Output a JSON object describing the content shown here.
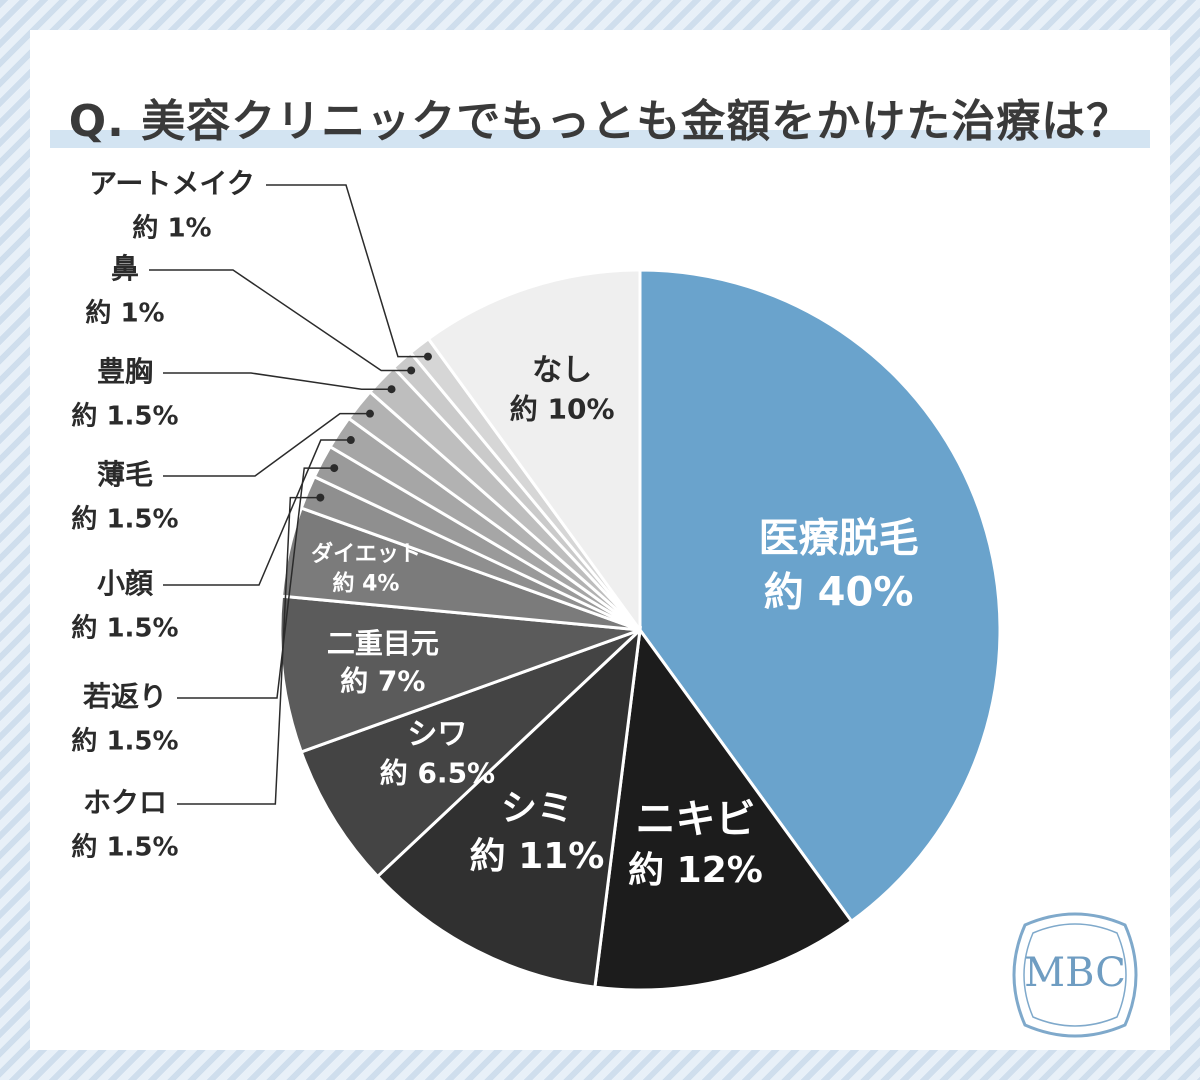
{
  "title": "Q. 美容クリニックでもっとも金額をかけた治療は？",
  "logo_text": "MBC",
  "chart_data": {
    "type": "pie",
    "title": "Q. 美容クリニックでもっとも金額をかけた治療は？",
    "unit": "%",
    "slices": [
      {
        "label": "医療脱毛",
        "pct_label": "約 40%",
        "value": 40,
        "color": "#6aa3cc",
        "text_color": "#ffffff",
        "placement": "inside"
      },
      {
        "label": "ニキビ",
        "pct_label": "約 12%",
        "value": 12,
        "color": "#1c1c1c",
        "text_color": "#ffffff",
        "placement": "inside"
      },
      {
        "label": "シミ",
        "pct_label": "約 11%",
        "value": 11,
        "color": "#303030",
        "text_color": "#ffffff",
        "placement": "inside"
      },
      {
        "label": "シワ",
        "pct_label": "約 6.5%",
        "value": 6.5,
        "color": "#444444",
        "text_color": "#ffffff",
        "placement": "inside"
      },
      {
        "label": "二重目元",
        "pct_label": "約 7%",
        "value": 7,
        "color": "#5b5b5b",
        "text_color": "#ffffff",
        "placement": "inside"
      },
      {
        "label": "ダイエット",
        "pct_label": "約 4%",
        "value": 4,
        "color": "#7b7b7b",
        "text_color": "#ffffff",
        "placement": "inside"
      },
      {
        "label": "ホクロ",
        "pct_label": "約 1.5%",
        "value": 1.5,
        "color": "#8f8f8f",
        "text_color": "#2b2b2b",
        "placement": "outside"
      },
      {
        "label": "若返り",
        "pct_label": "約 1.5%",
        "value": 1.5,
        "color": "#9a9a9a",
        "text_color": "#2b2b2b",
        "placement": "outside"
      },
      {
        "label": "小顔",
        "pct_label": "約 1.5%",
        "value": 1.5,
        "color": "#a6a6a6",
        "text_color": "#2b2b2b",
        "placement": "outside"
      },
      {
        "label": "薄毛",
        "pct_label": "約 1.5%",
        "value": 1.5,
        "color": "#b2b2b2",
        "text_color": "#2b2b2b",
        "placement": "outside"
      },
      {
        "label": "豊胸",
        "pct_label": "約 1.5%",
        "value": 1.5,
        "color": "#bebebe",
        "text_color": "#2b2b2b",
        "placement": "outside"
      },
      {
        "label": "鼻",
        "pct_label": "約 1%",
        "value": 1,
        "color": "#cacaca",
        "text_color": "#2b2b2b",
        "placement": "outside"
      },
      {
        "label": "アートメイク",
        "pct_label": "約 1%",
        "value": 1,
        "color": "#d6d6d6",
        "text_color": "#2b2b2b",
        "placement": "outside"
      },
      {
        "label": "なし",
        "pct_label": "約 10%",
        "value": 10,
        "color": "#efefef",
        "text_color": "#2b2b2b",
        "placement": "inside"
      }
    ]
  }
}
